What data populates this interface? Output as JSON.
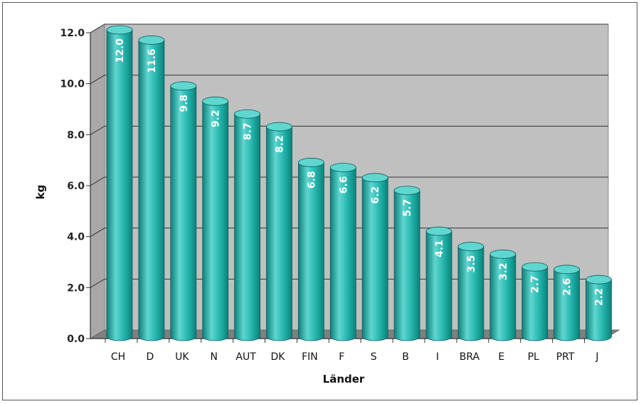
{
  "chart_data": {
    "type": "bar",
    "categories": [
      "CH",
      "D",
      "UK",
      "N",
      "AUT",
      "DK",
      "FIN",
      "F",
      "S",
      "B",
      "I",
      "BRA",
      "E",
      "PL",
      "PRT",
      "J"
    ],
    "values": [
      12.0,
      11.6,
      9.8,
      9.2,
      8.7,
      8.2,
      6.8,
      6.6,
      6.2,
      5.7,
      4.1,
      3.5,
      3.2,
      2.7,
      2.6,
      2.2
    ],
    "value_labels": [
      "12.0",
      "11.6",
      "9.8",
      "9.2",
      "8.7",
      "8.2",
      "6.8",
      "6.6",
      "6.2",
      "5.7",
      "4.1",
      "3.5",
      "3.2",
      "2.7",
      "2.6",
      "2.2"
    ],
    "xlabel": "Länder",
    "ylabel": "kg",
    "ylim": [
      0,
      12
    ],
    "yticks": [
      "0.0",
      "2.0",
      "4.0",
      "6.0",
      "8.0",
      "10.0",
      "12.0"
    ],
    "grid": true,
    "colors": {
      "bar": "#20b2aa",
      "bar_dark": "#0f7f7a",
      "bar_light": "#5fd6d0",
      "wall": "#c0c0c0",
      "floor": "#808080"
    }
  }
}
